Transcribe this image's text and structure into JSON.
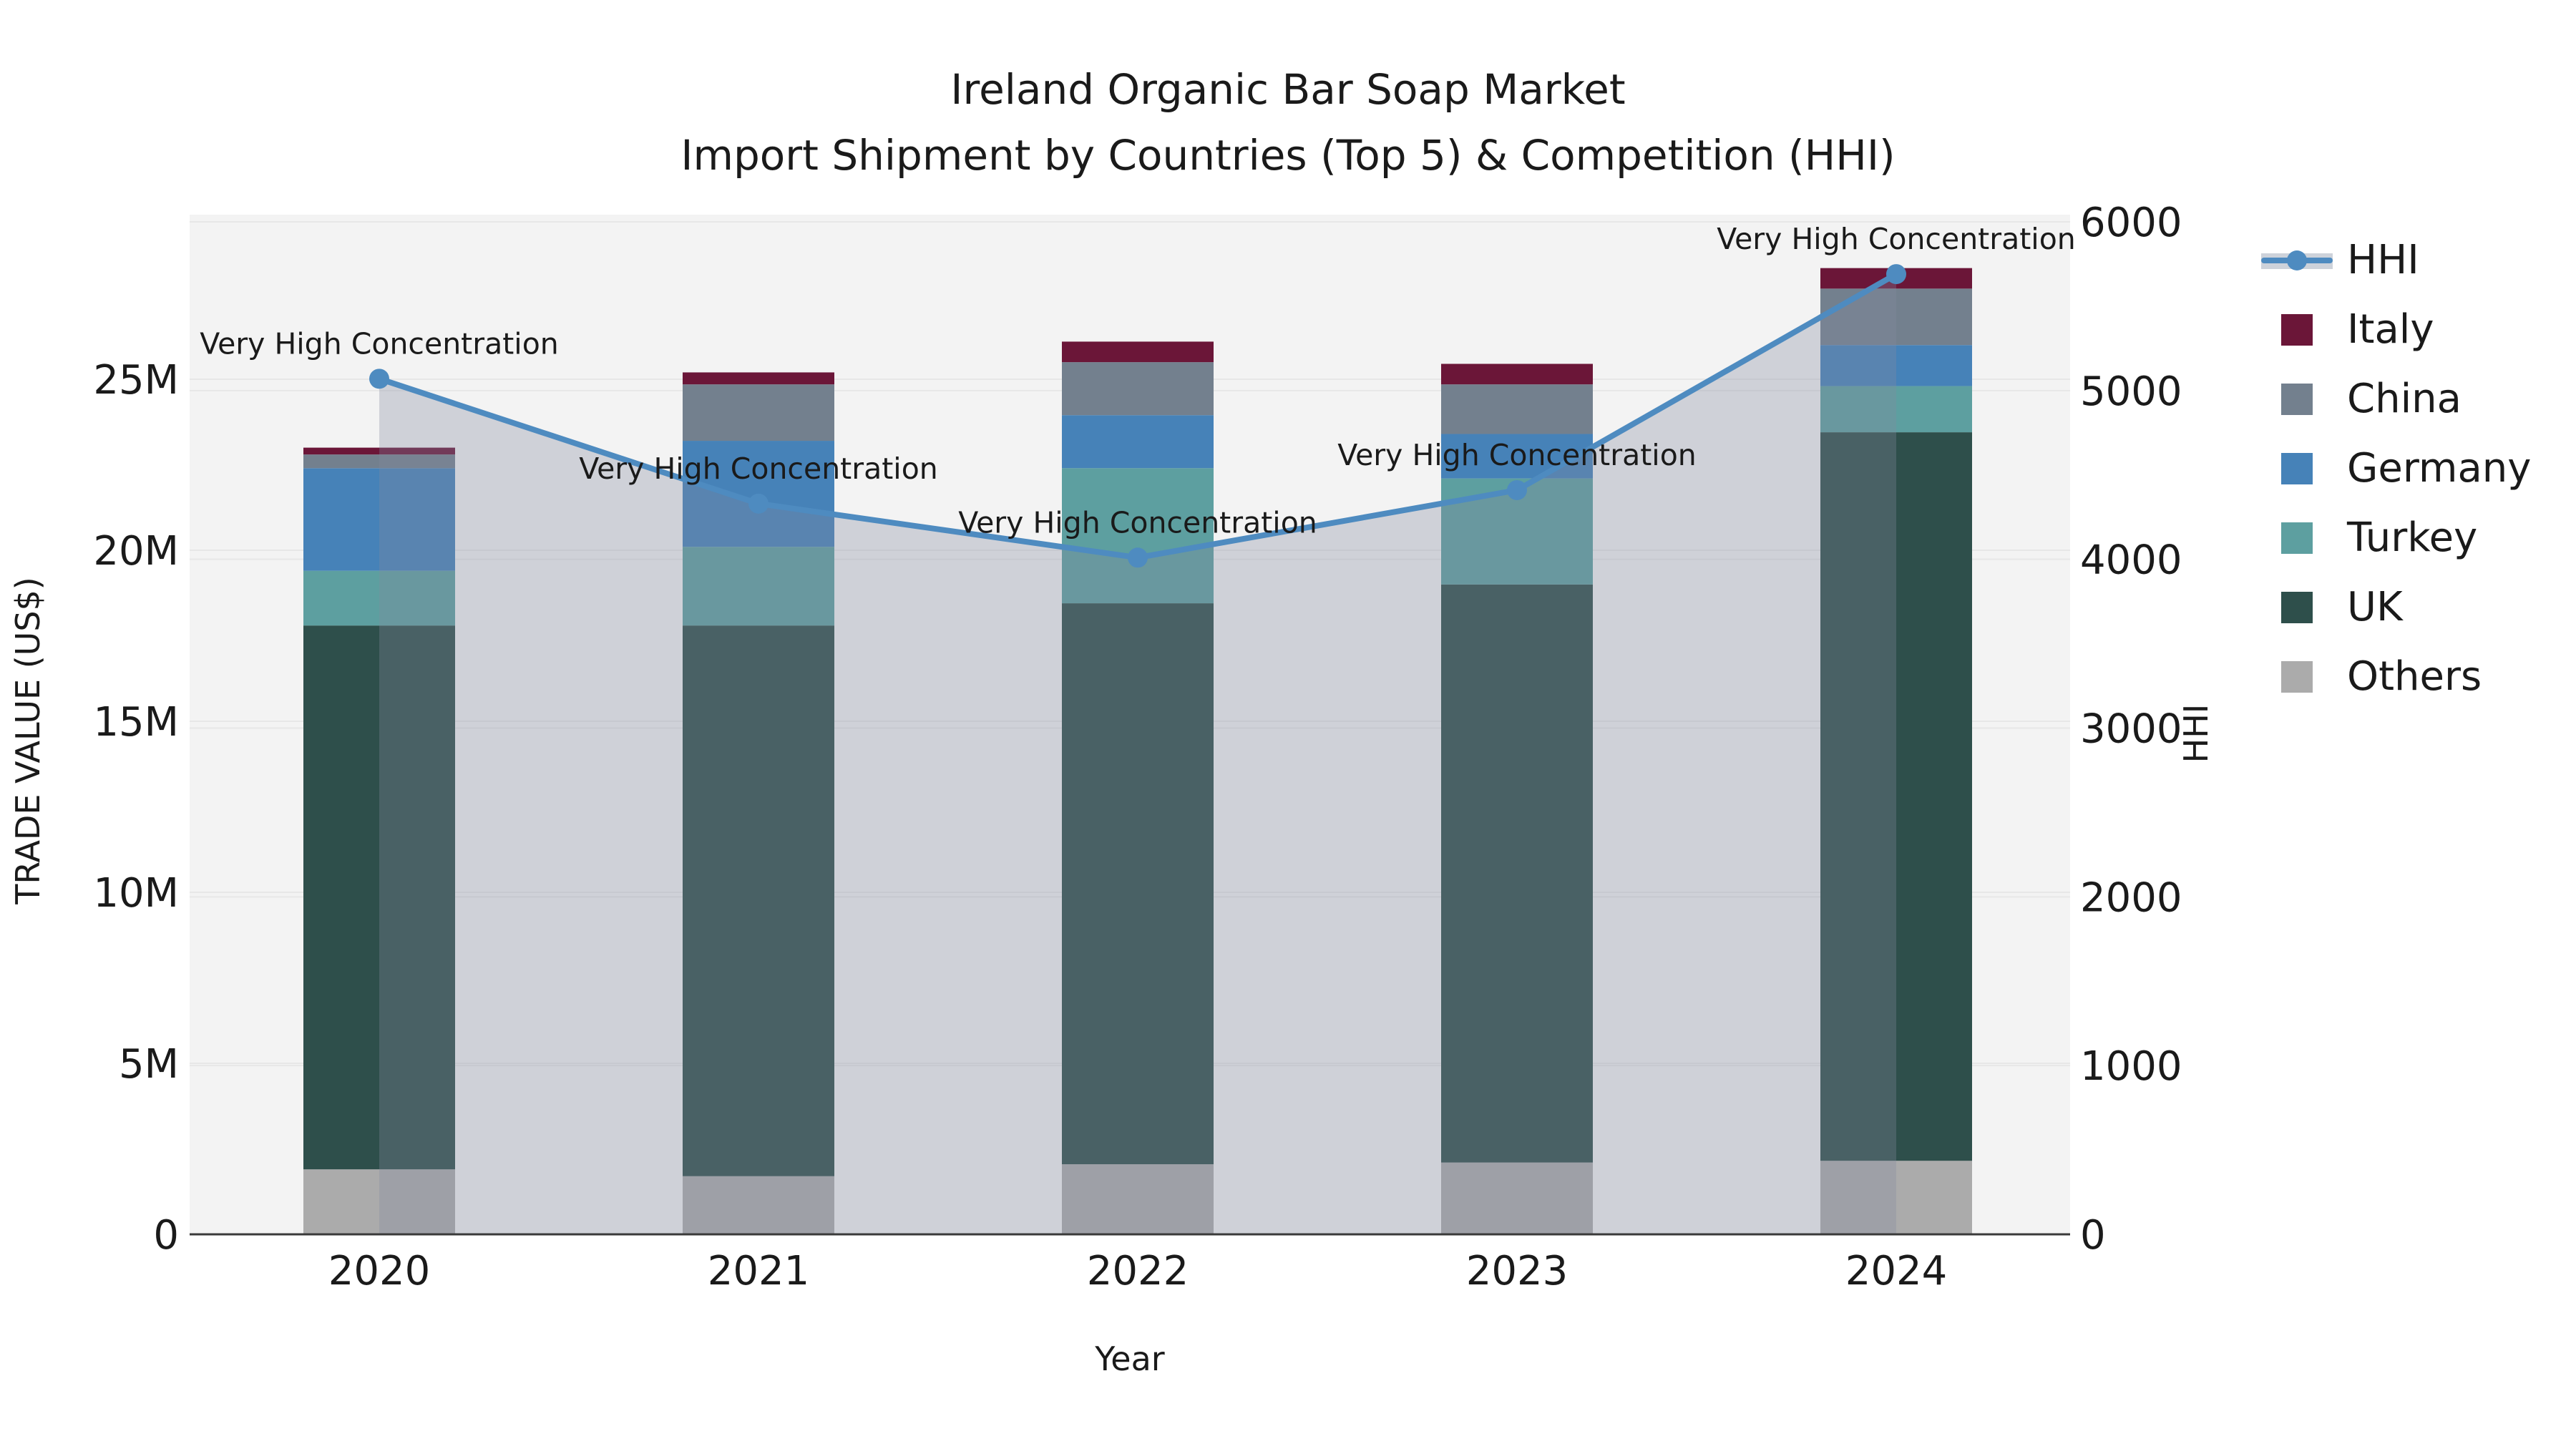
{
  "title": {
    "line1": "Ireland Organic Bar Soap Market",
    "line2": "Import Shipment by Countries (Top 5) & Competition (HHI)"
  },
  "axes": {
    "x_label": "Year",
    "left_label": "TRADE VALUE (US$)",
    "right_label": "HHI",
    "x_ticks": [
      "2020",
      "2021",
      "2022",
      "2023",
      "2024"
    ],
    "left_ticks": [
      {
        "label": "0",
        "value": 0
      },
      {
        "label": "5M",
        "value": 5
      },
      {
        "label": "10M",
        "value": 10
      },
      {
        "label": "15M",
        "value": 15
      },
      {
        "label": "20M",
        "value": 20
      },
      {
        "label": "25M",
        "value": 25
      }
    ],
    "right_ticks": [
      {
        "label": "0",
        "value": 0
      },
      {
        "label": "1000",
        "value": 1000
      },
      {
        "label": "2000",
        "value": 2000
      },
      {
        "label": "3000",
        "value": 3000
      },
      {
        "label": "4000",
        "value": 4000
      },
      {
        "label": "5000",
        "value": 5000
      },
      {
        "label": "6000",
        "value": 6000
      }
    ]
  },
  "legend": {
    "items": [
      {
        "label": "HHI",
        "type": "line",
        "color": "#4e8bc0"
      },
      {
        "label": "Italy",
        "type": "patch",
        "color": "#6b1638"
      },
      {
        "label": "China",
        "type": "patch",
        "color": "#73808e"
      },
      {
        "label": "Germany",
        "type": "patch",
        "color": "#4682b8"
      },
      {
        "label": "Turkey",
        "type": "patch",
        "color": "#5d9fa0"
      },
      {
        "label": "UK",
        "type": "patch",
        "color": "#2e4f4b"
      },
      {
        "label": "Others",
        "type": "patch",
        "color": "#ababab"
      }
    ]
  },
  "annotation_text": "Very High Concentration",
  "colors": {
    "background": "#ffffff",
    "plot_background": "#f3f3f3",
    "gridline": "#e7e7e7",
    "axis_line": "#3a3a3a",
    "text": "#1a1a1a",
    "hhi_line": "#4e8bc0",
    "hhi_area_fill": "rgba(130,138,160,0.32)",
    "legend_hhi_band": "#cdd2da"
  },
  "chart_data": {
    "type": "bar+line",
    "title": "Ireland Organic Bar Soap Market Import Shipment by Countries (Top 5) & Competition (HHI)",
    "unit_left": "US$ millions",
    "categories": [
      "2020",
      "2021",
      "2022",
      "2023",
      "2024"
    ],
    "stack_order_bottom_to_top": [
      "Others",
      "UK",
      "Turkey",
      "Germany",
      "China",
      "Italy"
    ],
    "series": [
      {
        "name": "Others",
        "color": "#ababab",
        "values": [
          1.9,
          1.7,
          2.05,
          2.1,
          2.15
        ]
      },
      {
        "name": "UK",
        "color": "#2e4f4b",
        "values": [
          15.9,
          16.1,
          16.4,
          16.9,
          21.3
        ]
      },
      {
        "name": "Turkey",
        "color": "#5d9fa0",
        "values": [
          1.6,
          2.3,
          3.95,
          3.1,
          1.35
        ]
      },
      {
        "name": "Germany",
        "color": "#4682b8",
        "values": [
          3.0,
          3.1,
          1.55,
          1.3,
          1.2
        ]
      },
      {
        "name": "China",
        "color": "#73808e",
        "values": [
          0.4,
          1.65,
          1.55,
          1.45,
          1.65
        ]
      },
      {
        "name": "Italy",
        "color": "#6b1638",
        "values": [
          0.2,
          0.35,
          0.6,
          0.6,
          0.6
        ]
      }
    ],
    "bar_totals": [
      23.0,
      25.2,
      26.1,
      25.45,
      28.25
    ],
    "line": {
      "name": "HHI",
      "color": "#4e8bc0",
      "values": [
        5070,
        4330,
        4010,
        4410,
        5690
      ],
      "annotations": [
        "Very High Concentration",
        "Very High Concentration",
        "Very High Concentration",
        "Very High Concentration",
        "Very High Concentration"
      ]
    },
    "xlabel": "Year",
    "ylabel": "TRADE VALUE (US$)",
    "y2label": "HHI",
    "ylim": [
      0,
      29.8
    ],
    "y2lim": [
      0,
      6000
    ],
    "grid": true,
    "legend_position": "right"
  }
}
